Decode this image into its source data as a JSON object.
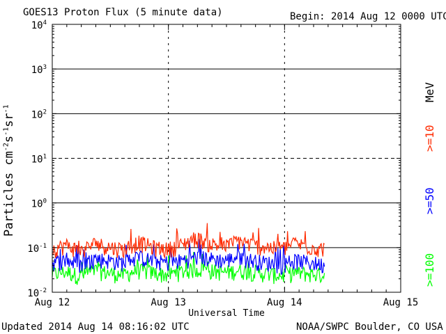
{
  "header": {
    "title": "GOES13 Proton Flux (5 minute data)",
    "begin": "Begin: 2014 Aug 12 0000 UTC"
  },
  "footer": {
    "updated": "Updated 2014 Aug 14 08:16:02 UTC",
    "credit": "NOAA/SWPC Boulder, CO USA"
  },
  "colors": {
    "ge10": "#ff2a00",
    "ge50": "#0000ff",
    "ge100": "#00ff00",
    "axis": "#000000",
    "background": "#ffffff"
  },
  "chart_data": {
    "type": "line",
    "title": "GOES13 Proton Flux (5 minute data)",
    "xlabel": "Universal Time",
    "ylabel": "Particles cm-2 s-1 sr-1",
    "y_scale": "log",
    "ylim": [
      0.01,
      10000
    ],
    "xlim": [
      "2014-08-12 00:00",
      "2014-08-15 00:00"
    ],
    "x_tick_labels": [
      "Aug 12",
      "Aug 13",
      "Aug 14",
      "Aug 15"
    ],
    "y_tick_labels": [
      "10^-2",
      "10^-1",
      "10^0",
      "10^1",
      "10^2",
      "10^3",
      "10^4"
    ],
    "energy_unit": "MeV",
    "reference_lines": [
      {
        "y": 0.1,
        "style": "solid"
      },
      {
        "y": 1,
        "style": "solid"
      },
      {
        "y": 10,
        "style": "dashed"
      },
      {
        "y": 100,
        "style": "solid"
      },
      {
        "y": 1000,
        "style": "solid"
      }
    ],
    "x_times": [
      "Aug 12 00:00",
      "Aug 12 03:00",
      "Aug 12 06:00",
      "Aug 12 09:00",
      "Aug 12 12:00",
      "Aug 12 15:00",
      "Aug 12 18:00",
      "Aug 12 21:00",
      "Aug 13 00:00",
      "Aug 13 03:00",
      "Aug 13 06:00",
      "Aug 13 09:00",
      "Aug 13 12:00",
      "Aug 13 15:00",
      "Aug 13 18:00",
      "Aug 13 21:00",
      "Aug 14 00:00",
      "Aug 14 03:00",
      "Aug 14 06:00",
      "Aug 14 08:15"
    ],
    "series": [
      {
        "name": ">=10",
        "color": "#ff2a00",
        "values": [
          0.09,
          0.11,
          0.08,
          0.12,
          0.1,
          0.09,
          0.13,
          0.1,
          0.09,
          0.11,
          0.16,
          0.12,
          0.1,
          0.14,
          0.11,
          0.1,
          0.09,
          0.12,
          0.1,
          0.09
        ]
      },
      {
        "name": ">=50",
        "color": "#0000ff",
        "values": [
          0.045,
          0.05,
          0.04,
          0.055,
          0.05,
          0.045,
          0.06,
          0.05,
          0.045,
          0.05,
          0.06,
          0.055,
          0.05,
          0.06,
          0.05,
          0.045,
          0.04,
          0.05,
          0.045,
          0.04
        ]
      },
      {
        "name": ">=100",
        "color": "#00ff00",
        "values": [
          0.025,
          0.028,
          0.022,
          0.03,
          0.026,
          0.024,
          0.03,
          0.027,
          0.024,
          0.028,
          0.032,
          0.03,
          0.027,
          0.03,
          0.028,
          0.025,
          0.023,
          0.027,
          0.025,
          0.024
        ]
      }
    ]
  }
}
